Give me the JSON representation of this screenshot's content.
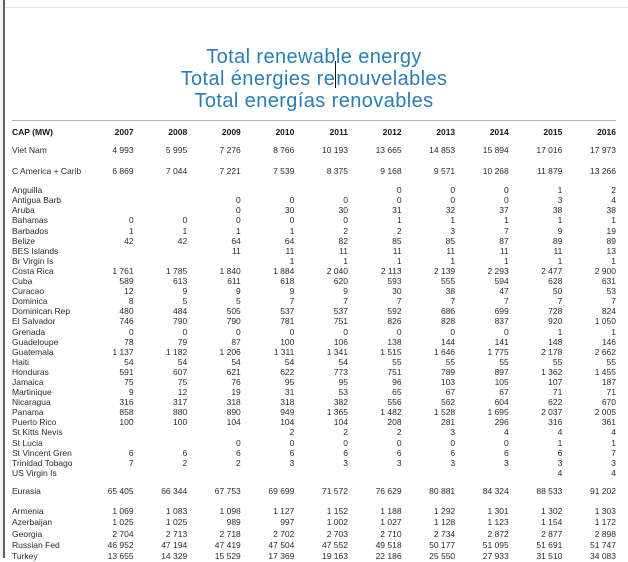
{
  "page": {
    "background": "#ffffff",
    "title_color": "#2b7fae"
  },
  "title": {
    "line1": "Total renewable energy",
    "line2_before_cursor": "Total énergies re",
    "line2_after_cursor": "nouvelables",
    "line3": "Total energías renovables"
  },
  "table": {
    "header": [
      "CAP (MW)",
      "2007",
      "2008",
      "2009",
      "2010",
      "2011",
      "2012",
      "2013",
      "2014",
      "2015",
      "2016"
    ],
    "rows": [
      {
        "label": "Viet Nam",
        "cls": "row-vn",
        "values": [
          "4 993",
          "5 995",
          "7 276",
          "8 766",
          "10 193",
          "13 665",
          "14 853",
          "15 894",
          "17 016",
          "17 973"
        ]
      },
      {
        "gap": 6
      },
      {
        "label": "C America + Carib",
        "values": [
          "6 869",
          "7 044",
          "7 221",
          "7 539",
          "8 375",
          "9 168",
          "9 571",
          "10 268",
          "11 879",
          "13 266"
        ]
      },
      {
        "gap": 9
      },
      {
        "label": "Anguilla",
        "values": [
          "",
          "",
          "",
          "",
          "",
          "0",
          "0",
          "0",
          "1",
          "2"
        ]
      },
      {
        "label": "Antigua Barb",
        "values": [
          "",
          "",
          "0",
          "0",
          "0",
          "0",
          "0",
          "0",
          "3",
          "4"
        ]
      },
      {
        "label": "Aruba",
        "values": [
          "",
          "",
          "0",
          "30",
          "30",
          "31",
          "32",
          "37",
          "38",
          "38"
        ]
      },
      {
        "label": "Bahamas",
        "values": [
          "0",
          "0",
          "0",
          "0",
          "0",
          "1",
          "1",
          "1",
          "1",
          "1"
        ]
      },
      {
        "label": "Barbados",
        "values": [
          "1",
          "1",
          "1",
          "1",
          "2",
          "2",
          "3",
          "7",
          "9",
          "19"
        ]
      },
      {
        "label": "Belize",
        "values": [
          "42",
          "42",
          "64",
          "64",
          "82",
          "85",
          "85",
          "87",
          "89",
          "89"
        ]
      },
      {
        "label": "BES Islands",
        "values": [
          "",
          "",
          "11",
          "11",
          "11",
          "11",
          "11",
          "11",
          "11",
          "13"
        ]
      },
      {
        "label": "Br Virgin Is",
        "values": [
          "",
          "",
          "",
          "1",
          "1",
          "1",
          "1",
          "1",
          "1",
          "1"
        ]
      },
      {
        "label": "Costa Rica",
        "values": [
          "1 761",
          "1 785",
          "1 840",
          "1 884",
          "2 040",
          "2 113",
          "2 139",
          "2 293",
          "2 477",
          "2 900"
        ]
      },
      {
        "label": "Cuba",
        "values": [
          "589",
          "613",
          "611",
          "618",
          "620",
          "593",
          "555",
          "594",
          "628",
          "631"
        ]
      },
      {
        "label": "Curacao",
        "values": [
          "12",
          "9",
          "9",
          "9",
          "9",
          "30",
          "38",
          "47",
          "50",
          "53"
        ]
      },
      {
        "label": "Dominica",
        "values": [
          "8",
          "5",
          "5",
          "7",
          "7",
          "7",
          "7",
          "7",
          "7",
          "7"
        ]
      },
      {
        "label": "Dominican Rep",
        "values": [
          "480",
          "484",
          "505",
          "537",
          "537",
          "592",
          "686",
          "699",
          "728",
          "824"
        ]
      },
      {
        "label": "El Salvador",
        "values": [
          "746",
          "790",
          "790",
          "781",
          "751",
          "826",
          "828",
          "837",
          "920",
          "1 050"
        ]
      },
      {
        "label": "Grenada",
        "values": [
          "0",
          "0",
          "0",
          "0",
          "0",
          "0",
          "0",
          "0",
          "1",
          "1"
        ]
      },
      {
        "label": "Guadeloupe",
        "values": [
          "78",
          "79",
          "87",
          "100",
          "106",
          "138",
          "144",
          "141",
          "148",
          "146"
        ]
      },
      {
        "label": "Guatemala",
        "values": [
          "1 137",
          "1 182",
          "1 206",
          "1 311",
          "1 341",
          "1 515",
          "1 646",
          "1 775",
          "2 178",
          "2 662"
        ]
      },
      {
        "label": "Haiti",
        "values": [
          "54",
          "54",
          "54",
          "54",
          "54",
          "55",
          "55",
          "55",
          "55",
          "55"
        ]
      },
      {
        "label": "Honduras",
        "values": [
          "591",
          "607",
          "621",
          "622",
          "773",
          "751",
          "789",
          "897",
          "1 362",
          "1 455"
        ]
      },
      {
        "label": "Jamaica",
        "values": [
          "75",
          "75",
          "76",
          "95",
          "95",
          "96",
          "103",
          "105",
          "107",
          "187"
        ]
      },
      {
        "label": "Martinique",
        "values": [
          "9",
          "12",
          "19",
          "31",
          "53",
          "65",
          "67",
          "67",
          "71",
          "71"
        ]
      },
      {
        "label": "Nicaragua",
        "values": [
          "316",
          "317",
          "318",
          "318",
          "382",
          "556",
          "562",
          "604",
          "622",
          "670"
        ]
      },
      {
        "label": "Panama",
        "values": [
          "858",
          "880",
          "890",
          "949",
          "1 365",
          "1 482",
          "1 528",
          "1 695",
          "2 037",
          "2 005"
        ]
      },
      {
        "label": "Puerto Rico",
        "values": [
          "100",
          "100",
          "104",
          "104",
          "104",
          "208",
          "281",
          "296",
          "316",
          "361"
        ]
      },
      {
        "label": "St Kitts Nevis",
        "values": [
          "",
          "",
          "",
          "2",
          "2",
          "2",
          "3",
          "4",
          "4",
          "4"
        ]
      },
      {
        "label": "St Lucia",
        "values": [
          "",
          "",
          "0",
          "0",
          "0",
          "0",
          "0",
          "0",
          "1",
          "1"
        ]
      },
      {
        "label": "St Vincent Gren",
        "values": [
          "6",
          "6",
          "6",
          "6",
          "6",
          "6",
          "6",
          "6",
          "6",
          "7"
        ]
      },
      {
        "label": "Trinidad Tobago",
        "values": [
          "7",
          "2",
          "2",
          "3",
          "3",
          "3",
          "3",
          "3",
          "3",
          "3"
        ]
      },
      {
        "label": "US Virgin Is",
        "values": [
          "",
          "",
          "",
          "",
          "",
          "",
          "",
          "",
          "4",
          "4"
        ]
      },
      {
        "gap": 8
      },
      {
        "label": "Eurasia",
        "values": [
          "65 405",
          "66 344",
          "67 753",
          "69 699",
          "71 572",
          "76 629",
          "80 881",
          "84 324",
          "88 533",
          "91 202"
        ]
      },
      {
        "gap": 10
      },
      {
        "label": "Armenia",
        "cls": "row-sp",
        "values": [
          "1 069",
          "1 083",
          "1 098",
          "1 127",
          "1 152",
          "1 188",
          "1 292",
          "1 301",
          "1 302",
          "1 303"
        ]
      },
      {
        "label": "Azerbaijan",
        "cls": "row-sp",
        "values": [
          "1 025",
          "1 025",
          "989",
          "997",
          "1 002",
          "1 027",
          "1 128",
          "1 123",
          "1 154",
          "1 172"
        ]
      },
      {
        "label": "Georgia",
        "cls": "row-sp",
        "values": [
          "2 704",
          "2 713",
          "2 718",
          "2 702",
          "2 703",
          "2 710",
          "2 734",
          "2 872",
          "2 877",
          "2 898"
        ]
      },
      {
        "label": "Russian Fed",
        "cls": "row-sp",
        "values": [
          "46 952",
          "47 194",
          "47 419",
          "47 504",
          "47 552",
          "49 518",
          "50 177",
          "51 095",
          "51 691",
          "51 747"
        ]
      },
      {
        "label": "Turkey",
        "cls": "row-sp",
        "values": [
          "13 655",
          "14 329",
          "15 529",
          "17 369",
          "19 163",
          "22 186",
          "25 550",
          "27 933",
          "31 510",
          "34 083"
        ]
      }
    ]
  }
}
